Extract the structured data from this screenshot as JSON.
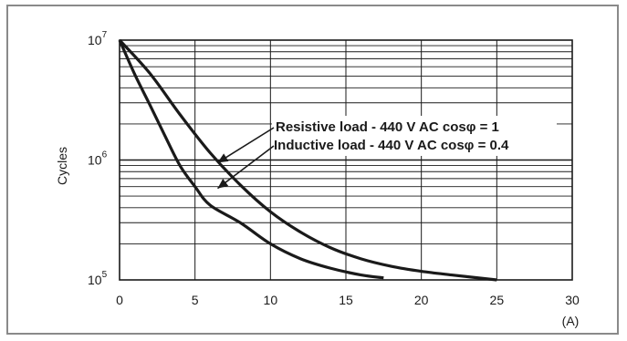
{
  "chart_data": {
    "type": "line",
    "title": "",
    "xlabel": "",
    "x_unit": "(A)",
    "ylabel": "Cycles",
    "y_scale": "log",
    "xlim": [
      0,
      30
    ],
    "ylim": [
      100000,
      10000000
    ],
    "x_ticks": [
      "0",
      "5",
      "10",
      "15",
      "20",
      "25",
      "30"
    ],
    "y_ticks": [
      {
        "base": "10",
        "exp": "7"
      },
      {
        "base": "10",
        "exp": "6"
      },
      {
        "base": "10",
        "exp": "5"
      }
    ],
    "grid": true,
    "series": [
      {
        "name": "Resistive load - 440 V AC cosφ = 1",
        "points": [
          [
            0,
            10000000
          ],
          [
            2,
            5300000
          ],
          [
            4,
            2400000
          ],
          [
            6,
            1150000
          ],
          [
            8,
            620000
          ],
          [
            10,
            370000
          ],
          [
            12,
            250000
          ],
          [
            14,
            185000
          ],
          [
            16,
            150000
          ],
          [
            18,
            130000
          ],
          [
            20,
            118000
          ],
          [
            22,
            110000
          ],
          [
            25,
            100000
          ]
        ]
      },
      {
        "name": "Inductive load - 440 V AC cosφ = 0.4",
        "points": [
          [
            0,
            10000000
          ],
          [
            1,
            5200000
          ],
          [
            2,
            2900000
          ],
          [
            3,
            1600000
          ],
          [
            4,
            900000
          ],
          [
            5,
            600000
          ],
          [
            6,
            420000
          ],
          [
            8,
            300000
          ],
          [
            10,
            200000
          ],
          [
            12,
            150000
          ],
          [
            14,
            125000
          ],
          [
            16,
            110000
          ],
          [
            17.5,
            104000
          ]
        ]
      }
    ],
    "annotations": [
      {
        "text": "Resistive load - 440 V AC cosφ = 1",
        "arrow_to": [
          6.5,
          950000
        ]
      },
      {
        "text": "Inductive load - 440 V AC cosφ = 0.4",
        "arrow_to": [
          6.5,
          580000
        ]
      }
    ],
    "colors": {
      "line": "#1a1a1a",
      "grid": "#1a1a1a",
      "frame": "#8a8a8a"
    }
  }
}
